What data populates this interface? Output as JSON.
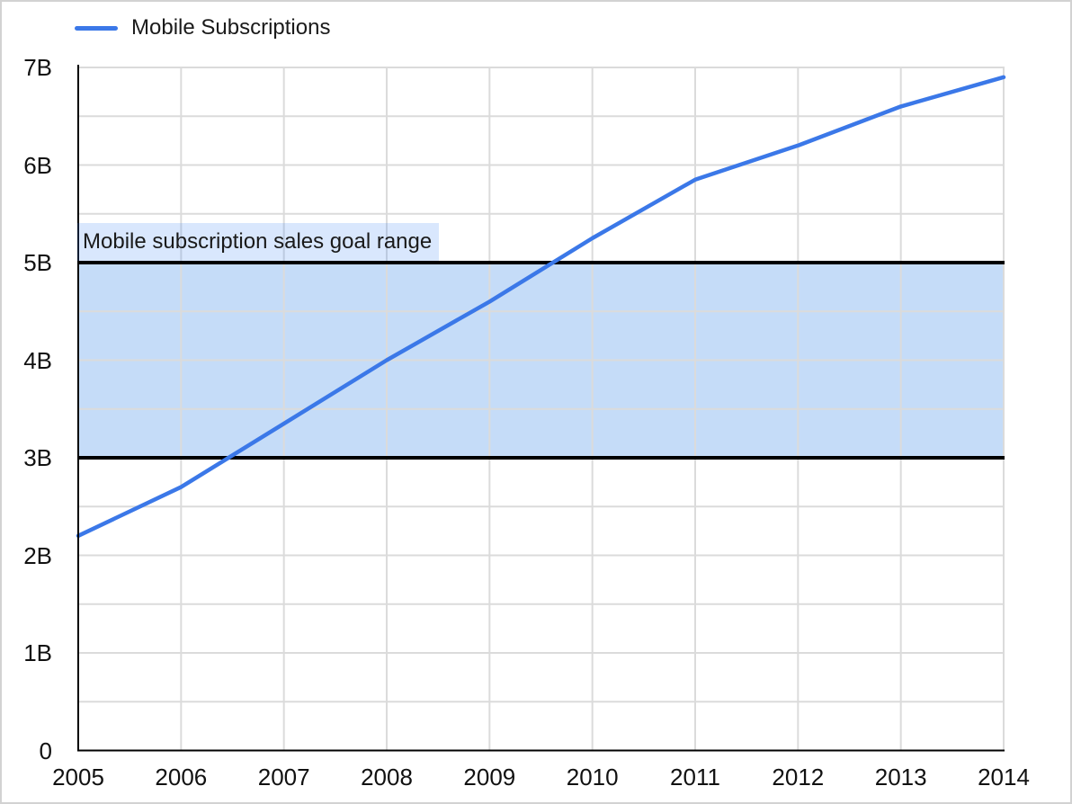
{
  "legend": {
    "label": "Mobile Subscriptions"
  },
  "band": {
    "label": "Mobile subscription sales goal range",
    "y_from": 3,
    "y_to": 5
  },
  "axes": {
    "y_tick_labels": [
      "0",
      "1B",
      "2B",
      "3B",
      "4B",
      "5B",
      "6B",
      "7B"
    ],
    "x_tick_labels": [
      "2005",
      "2006",
      "2007",
      "2008",
      "2009",
      "2010",
      "2011",
      "2012",
      "2013",
      "2014"
    ]
  },
  "colors": {
    "series_blue": "#3B78E8",
    "band_fill": "#C5DCF8",
    "band_label_bg": "rgba(66,133,244,0.20)",
    "band_border": "#000000",
    "gridline": "#DBDBDB",
    "axis": "#000000",
    "text": "#111111",
    "canvas_border": "#D2D2D2"
  },
  "chart_data": {
    "type": "line",
    "title": "",
    "xlabel": "",
    "ylabel": "",
    "x": [
      2005,
      2006,
      2007,
      2008,
      2009,
      2010,
      2011,
      2012,
      2013,
      2014
    ],
    "series": [
      {
        "name": "Mobile Subscriptions",
        "values": [
          2.2,
          2.7,
          3.35,
          4.0,
          4.6,
          5.25,
          5.85,
          6.2,
          6.6,
          6.9
        ]
      }
    ],
    "ylim": [
      0,
      7
    ],
    "y_major_step": 1,
    "y_minor_step": 0.5,
    "y_unit": "B",
    "grid": true,
    "legend_position": "top-left",
    "annotations": [
      {
        "type": "horizontal_band",
        "y_from": 3,
        "y_to": 5,
        "label": "Mobile subscription sales goal range"
      }
    ]
  }
}
